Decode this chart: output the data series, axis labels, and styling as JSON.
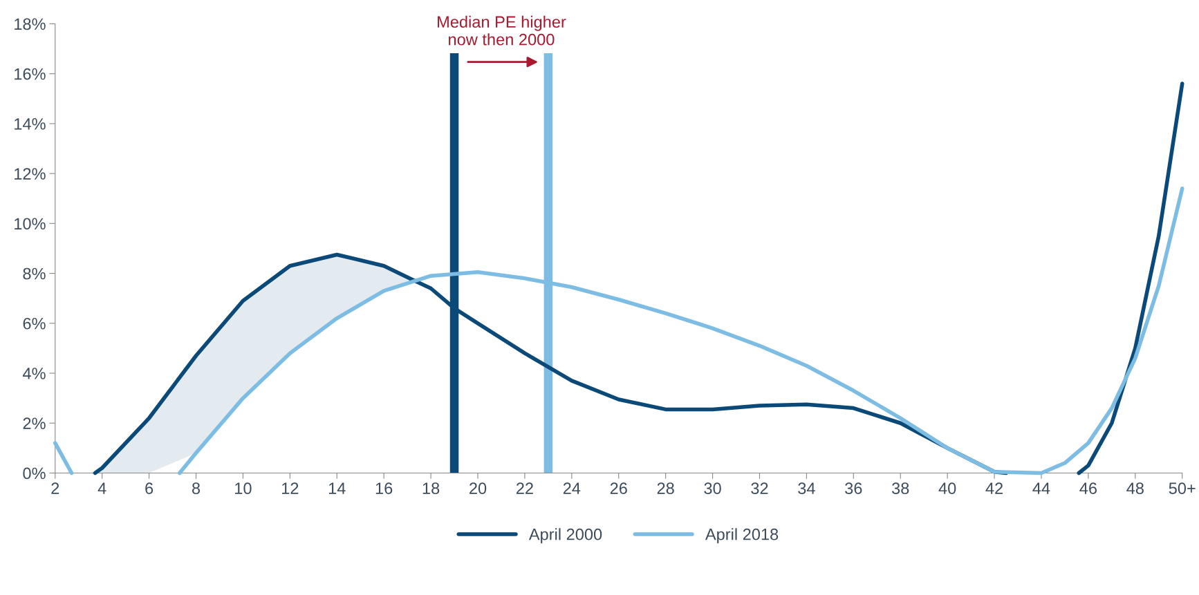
{
  "chart_data": {
    "type": "line",
    "xlim": [
      2,
      50
    ],
    "ylim": [
      0,
      18
    ],
    "xticks": [
      2,
      4,
      6,
      8,
      10,
      12,
      14,
      16,
      18,
      20,
      22,
      24,
      26,
      28,
      30,
      32,
      34,
      36,
      38,
      40,
      42,
      44,
      46,
      48,
      {
        "value": 50,
        "label": "50+"
      }
    ],
    "yticks": [
      {
        "value": 0,
        "label": "0%"
      },
      {
        "value": 2,
        "label": "2%"
      },
      {
        "value": 4,
        "label": "4%"
      },
      {
        "value": 6,
        "label": "6%"
      },
      {
        "value": 8,
        "label": "8%"
      },
      {
        "value": 10,
        "label": "10%"
      },
      {
        "value": 12,
        "label": "12%"
      },
      {
        "value": 14,
        "label": "14%"
      },
      {
        "value": 16,
        "label": "16%"
      },
      {
        "value": 18,
        "label": "18%"
      }
    ],
    "series": [
      {
        "name": "April 2000",
        "color": "#0b4a78",
        "x": [
          3.7,
          4,
          6,
          8,
          10,
          12,
          14,
          16,
          17.2,
          18,
          19,
          20,
          22,
          24,
          26,
          28,
          30,
          32,
          34,
          36,
          38,
          40,
          42,
          42.5,
          44,
          45.6,
          46,
          47,
          48,
          49,
          50
        ],
        "values": [
          0,
          0.2,
          2.2,
          4.7,
          6.9,
          8.3,
          8.75,
          8.3,
          7.75,
          7.4,
          6.6,
          6.0,
          4.8,
          3.7,
          2.95,
          2.55,
          2.55,
          2.7,
          2.75,
          2.6,
          2.0,
          1.0,
          0.05,
          0,
          null,
          0,
          0.3,
          2.0,
          5.0,
          9.5,
          15.6
        ],
        "lower": [
          0,
          0,
          0,
          0.8,
          3.0,
          4.8,
          6.2,
          7.3,
          7.75,
          null,
          null,
          null,
          null,
          null,
          null,
          null,
          null,
          null,
          null,
          null,
          null,
          null,
          null,
          null,
          null,
          null,
          null,
          null,
          null,
          null,
          null
        ],
        "upper": [
          0,
          0.2,
          2.2,
          4.7,
          6.9,
          8.3,
          8.75,
          8.3,
          7.75,
          null,
          null,
          null,
          null,
          null,
          null,
          null,
          null,
          null,
          null,
          null,
          null,
          null,
          null,
          null,
          null,
          null,
          null,
          null,
          null,
          null,
          null
        ]
      },
      {
        "name": "April 2018",
        "color": "#7dbde3",
        "x": [
          2,
          2.7,
          5,
          7.3,
          8,
          10,
          12,
          14,
          16,
          18,
          20,
          22,
          24,
          26,
          28,
          30,
          32,
          34,
          36,
          38,
          40,
          42,
          44,
          45,
          46,
          47,
          48,
          49,
          50
        ],
        "values": [
          1.2,
          0,
          null,
          0,
          0.8,
          3.0,
          4.8,
          6.2,
          7.3,
          7.9,
          8.05,
          7.8,
          7.45,
          6.95,
          6.4,
          5.8,
          5.1,
          4.3,
          3.3,
          2.2,
          1.0,
          0.05,
          0,
          0.4,
          1.2,
          2.6,
          4.6,
          7.5,
          11.4
        ]
      }
    ],
    "ref_lines": [
      {
        "axis": "x",
        "value": 19,
        "color": "#0b4a78",
        "line_style": "solid"
      },
      {
        "axis": "x",
        "value": 23,
        "color": "#7dbde3",
        "line_style": "solid"
      }
    ],
    "annotations": [
      "Median PE higher\nnow then 2000"
    ],
    "legend": "bottom",
    "grid": false,
    "marker": "none",
    "line_style": "solid"
  }
}
